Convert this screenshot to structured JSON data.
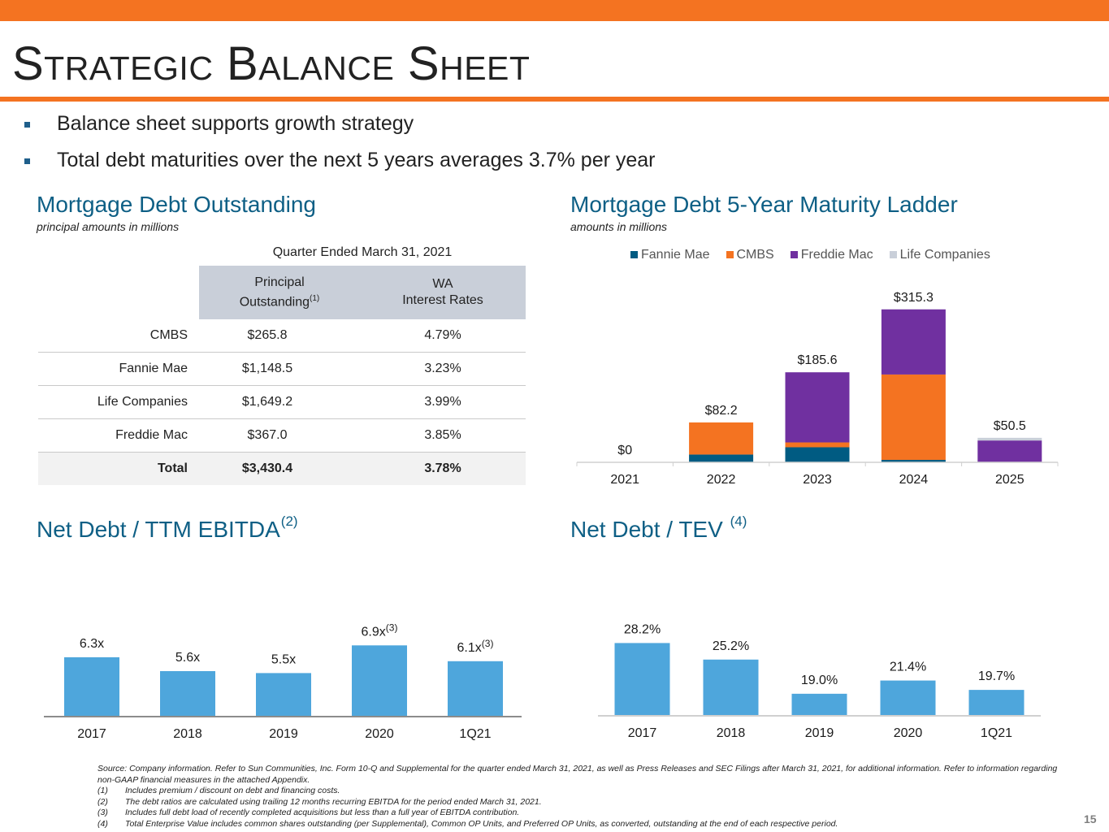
{
  "page": {
    "title": "Strategic Balance Sheet",
    "page_number": "15",
    "bullets": [
      "Balance sheet supports growth strategy",
      "Total debt maturities over the next 5 years averages 3.7% per year"
    ]
  },
  "colors": {
    "accent": "#f47321",
    "heading": "#0e5f85",
    "bar": "#4ea6dc",
    "fannie_mae": "#005b82",
    "cmbs": "#f47321",
    "freddie_mac": "#7030a0",
    "life_companies": "#c9cfd9"
  },
  "debt_table": {
    "title": "Mortgage Debt Outstanding",
    "subtitle": "principal amounts in millions",
    "caption": "Quarter Ended March 31, 2021",
    "col1_line1": "Principal",
    "col1_line2": "Outstanding",
    "col1_note": "(1)",
    "col2_line1": "WA",
    "col2_line2": "Interest Rates",
    "rows": [
      {
        "label": "CMBS",
        "principal": "$265.8",
        "rate": "4.79%"
      },
      {
        "label": "Fannie Mae",
        "principal": "$1,148.5",
        "rate": "3.23%"
      },
      {
        "label": "Life Companies",
        "principal": "$1,649.2",
        "rate": "3.99%"
      },
      {
        "label": "Freddie Mac",
        "principal": "$367.0",
        "rate": "3.85%"
      }
    ],
    "total": {
      "label": "Total",
      "principal": "$3,430.4",
      "rate": "3.78%"
    }
  },
  "maturity_header": {
    "title": "Mortgage Debt 5-Year Maturity Ladder",
    "subtitle": "amounts in millions"
  },
  "ebitda_header": {
    "title": "Net Debt / TTM EBITDA",
    "note": "(2)"
  },
  "tev_header": {
    "title": "Net Debt / TEV",
    "note": "(4)"
  },
  "chart_data": [
    {
      "type": "bar",
      "stacked": true,
      "categories": [
        "2021",
        "2022",
        "2023",
        "2024",
        "2025"
      ],
      "series": [
        {
          "name": "Fannie Mae",
          "values": [
            0,
            16,
            31,
            5,
            0
          ]
        },
        {
          "name": "CMBS",
          "values": [
            0,
            66.2,
            10,
            176,
            0
          ]
        },
        {
          "name": "Freddie Mac",
          "values": [
            0,
            0,
            144.6,
            134.3,
            45
          ]
        },
        {
          "name": "Life Companies",
          "values": [
            0,
            0,
            0,
            0,
            5.5
          ]
        }
      ],
      "totals": [
        0,
        82.2,
        185.6,
        315.3,
        50.5
      ],
      "data_labels": [
        "$0",
        "$82.2",
        "$185.6",
        "$315.3",
        "$50.5"
      ],
      "ylim": [
        0,
        335
      ],
      "legend_position": "top"
    },
    {
      "type": "bar",
      "categories": [
        "2017",
        "2018",
        "2019",
        "2020",
        "1Q21"
      ],
      "values": [
        6.3,
        5.6,
        5.5,
        6.9,
        6.1
      ],
      "data_labels": [
        "6.3x",
        "5.6x",
        "5.5x",
        "6.9x",
        "6.1x"
      ],
      "label_notes": [
        "",
        "",
        "",
        "(3)",
        "(3)"
      ],
      "ylim": [
        3.3,
        7.2
      ]
    },
    {
      "type": "bar",
      "categories": [
        "2017",
        "2018",
        "2019",
        "2020",
        "1Q21"
      ],
      "values": [
        28.2,
        25.2,
        19.0,
        21.4,
        19.7
      ],
      "data_labels": [
        "28.2%",
        "25.2%",
        "19.0%",
        "21.4%",
        "19.7%"
      ],
      "ylim": [
        15,
        29
      ]
    }
  ],
  "footnotes": {
    "source": "Source: Company information. Refer to Sun Communities, Inc. Form 10-Q and Supplemental for the quarter ended March 31, 2021, as well as Press Releases and SEC Filings after March 31, 2021, for additional information. Refer to information regarding non-GAAP financial measures in the attached Appendix.",
    "notes": [
      {
        "num": "(1)",
        "text": "Includes premium / discount on debt and financing costs."
      },
      {
        "num": "(2)",
        "text": "The debt ratios are calculated using trailing 12 months recurring EBITDA for the period ended March 31, 2021."
      },
      {
        "num": "(3)",
        "text": "Includes full debt load of recently completed acquisitions but less than a full year of EBITDA contribution."
      },
      {
        "num": "(4)",
        "text": "Total Enterprise Value includes common shares outstanding (per Supplemental), Common OP Units, and Preferred OP Units, as converted, outstanding at the end of each respective period."
      }
    ]
  }
}
